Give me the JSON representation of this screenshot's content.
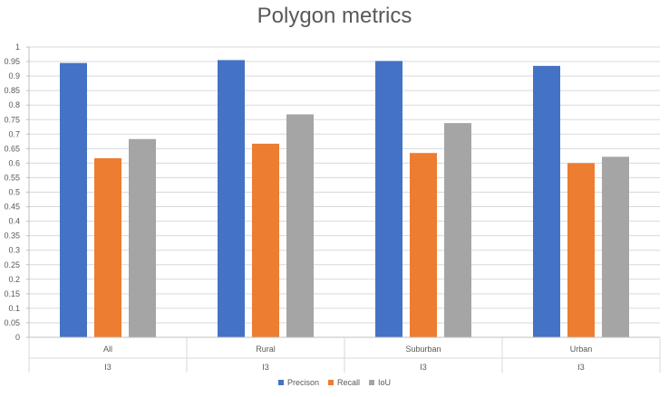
{
  "chart_data": {
    "type": "bar",
    "title": "Polygon metrics",
    "categories": [
      "All",
      "Rural",
      "Suburban",
      "Urban"
    ],
    "subcategories": [
      "I3",
      "I3",
      "I3",
      "I3"
    ],
    "series": [
      {
        "name": "Precison",
        "color": "#4472C4",
        "values": [
          0.945,
          0.955,
          0.952,
          0.935
        ]
      },
      {
        "name": "Recall",
        "color": "#ED7D31",
        "values": [
          0.617,
          0.667,
          0.635,
          0.6
        ]
      },
      {
        "name": "IoU",
        "color": "#A5A5A5",
        "values": [
          0.683,
          0.768,
          0.738,
          0.622
        ]
      }
    ],
    "ylim": [
      0,
      1
    ],
    "yticks": [
      "0",
      "0.05",
      "0.1",
      "0.15",
      "0.2",
      "0.25",
      "0.3",
      "0.35",
      "0.4",
      "0.45",
      "0.5",
      "0.55",
      "0.6",
      "0.65",
      "0.7",
      "0.75",
      "0.8",
      "0.85",
      "0.9",
      "0.95",
      "1"
    ],
    "grid": true,
    "legend_position": "bottom"
  }
}
